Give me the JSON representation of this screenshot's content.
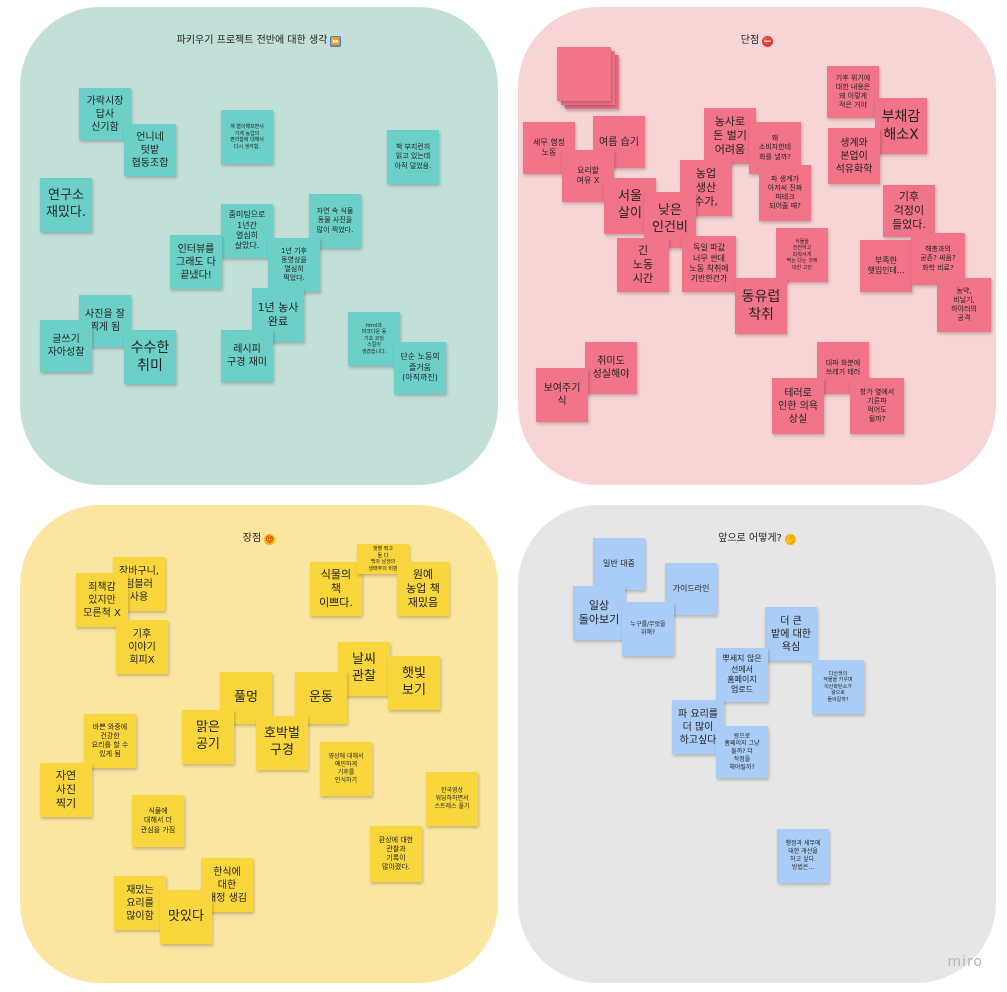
{
  "quadrants": {
    "tl": {
      "title": "파키우기 프로젝트 전반에 대한 생각",
      "emoji": "⏩",
      "color": "#c2dfd8"
    },
    "tr": {
      "title": "단점",
      "emoji": "⛔",
      "color": "#f7d5d6"
    },
    "bl": {
      "title": "장점",
      "emoji": "😍",
      "color": "#fbe6a1"
    },
    "br": {
      "title": "앞으로 어떻게?",
      "emoji": "💪",
      "color": "#e6e6e6"
    }
  },
  "notes": {
    "teal": [
      "가락시장\n답사\n신기함",
      "언니네\n텃밭\n협동조합",
      "계 협이해프면서\n기계 농업의\n편리함에 대해서\n다시 생각함.",
      "책 부지런히\n읽고 있는데\n아직 덜었음.",
      "연구소\n재밌다.",
      "줌미팅으로\n1년간\n열심히\n살았다.",
      "자연 속 식물\n동물 사진을\n많이 찍었다.",
      "인터뷰를\n그래도 다\n끝냈다!",
      "1년 기후\n동영상을\n열심히\n찍었다.",
      "사진을 잘\n찍게 됨",
      "1년 농사\n완료",
      "글쓰기\n자아성찰",
      "수수한\n취미",
      "레시피\n구경 재미",
      "html과\n마크다운 등\n기초 코딩\n스킬이\n생겼습니다.",
      "단순 노동의\n즐거움\n(아직까진)"
    ],
    "pink": [
      "",
      "세무 행정\n노동",
      "여름 습기",
      "요리할\n여유 X",
      "농사로\n돈 벌기\n어려움",
      "왜\n소비자한테\n화를 낼까?",
      "기후 위기에\n대한 내용은\n왜 이렇게\n적은 거야",
      "부채감\n해소X",
      "생계와\n본업이\n석유화학",
      "서울\n살이",
      "농업\n생산\n수가,",
      "파 생계가\n아저씨 진짜\n파테크\n되어줄 때?",
      "낮은\n인건비",
      "기후\n걱정이\n들었다.",
      "긴\n노동\n시간",
      "독일 파값\n너무 싼데\n노동 착취에\n기반한건가",
      "식물을\n전전하고\n파뤄서게\n짝는 다는 것에\n대한 고민",
      "부족한\n햇입인데...",
      "해충과의\n공존? 싸움?\n화학 비료?",
      "농약,\n비닐기,\n하이러의\n공격",
      "동유럽\n착취",
      "취미도\n성실해야",
      "보여주기\n식",
      "대파 화분에\n쓰레기 테러",
      "테러로\n인한 의욕\n상실",
      "창가 옆에서\n기른파\n먹어도\n될까?"
    ],
    "yellow": [
      "장바구니,\n텀블러\n사용",
      "죄책감\n있지만\n모른척 X",
      "식물의\n책\n이쁘다.",
      "햇볕 쬐고\n둘 다\n백의 남생의\n생태주의 비판",
      "원예\n농업 책\n재밌음",
      "기후\n이야기\n회피X",
      "날씨\n관찰",
      "햇빛\n보기",
      "풀멍",
      "운동",
      "맑은\n공기",
      "호박벌\n구경",
      "바쁜 와중에\n건강한\n요리를 할 수\n있게 됨",
      "영상에 대해서\n예민하게\n기후를\n인식하기",
      "자연\n사진\n찍기",
      "한국영상\n워딩하하면서\n스트레스 풀기",
      "식물에\n대해서 더\n관심을 가짐",
      "환상에 대한\n관찰과\n기록이\n많아졌다.",
      "한식에\n대한\n애정 생김",
      "재밌는\n요리를\n많이함",
      "맛있다"
    ],
    "blue": [
      "일반 대중",
      "가이드라인",
      "일상\n돌아보기",
      "누구를/무엇을\n위해?",
      "더 큰\n밭에 대한\n욕심",
      "뿌세지 않은\n선에서\n홈페이지\n업로드",
      "다산생의\n작물을 키우며\n이산화탄소가\n왕으로\n돌아갈까?",
      "파 요리를\n더 많이\n하고싶다",
      "왕으로\n홈페이지 그냥\n둘까? 더\n작정을\n해야될까?",
      "행정과 세무에\n대한 개선을\n하고 싶다.\n방법은..."
    ]
  },
  "brand": "miro"
}
